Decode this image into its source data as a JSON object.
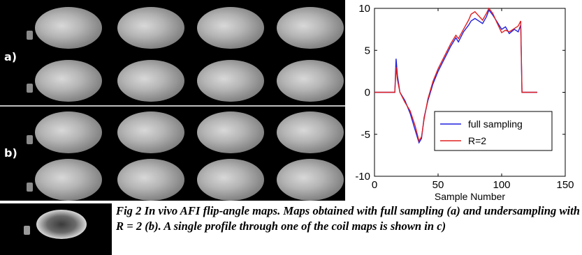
{
  "figure": {
    "row_labels": {
      "a": "a)",
      "b": "b)"
    },
    "caption": "Fig 2 In vivo AFI flip-angle maps.  Maps obtained with full sampling (a) and undersampling with R = 2 (b). A single profile through one of the coil maps is shown in c)"
  },
  "chart_data": {
    "type": "line",
    "xlabel": "Sample Number",
    "ylabel": "",
    "xlim": [
      0,
      150
    ],
    "ylim": [
      -10,
      10
    ],
    "xticks": [
      0,
      50,
      100,
      150
    ],
    "yticks": [
      -10,
      -5,
      0,
      5,
      10
    ],
    "grid": false,
    "legend_position": "lower-right",
    "series": [
      {
        "name": "full sampling",
        "color": "#1f1fe0",
        "x": [
          0,
          16,
          17,
          18,
          20,
          24,
          28,
          32,
          35,
          37,
          39,
          42,
          46,
          50,
          55,
          60,
          64,
          66,
          70,
          74,
          76,
          79,
          82,
          85,
          88,
          90,
          93,
          96,
          100,
          103,
          106,
          110,
          113,
          115,
          116,
          118,
          128
        ],
        "y": [
          0,
          0,
          4,
          2,
          0,
          -1,
          -2.5,
          -4.5,
          -6,
          -5.5,
          -3,
          -1,
          1,
          2.5,
          4,
          5.5,
          6.5,
          6,
          7.2,
          8,
          8.5,
          8.8,
          8.5,
          8.2,
          9,
          9.8,
          9.2,
          8.5,
          7.5,
          7.8,
          7,
          7.5,
          7.2,
          8,
          0,
          0,
          0
        ]
      },
      {
        "name": "R=2",
        "color": "#e02020",
        "x": [
          0,
          16,
          17,
          18,
          20,
          24,
          28,
          32,
          35,
          37,
          39,
          42,
          46,
          50,
          55,
          60,
          64,
          66,
          70,
          74,
          76,
          79,
          82,
          85,
          88,
          90,
          93,
          96,
          100,
          103,
          106,
          110,
          113,
          115,
          116,
          118,
          128
        ],
        "y": [
          0,
          0,
          3,
          1.5,
          0,
          -1.2,
          -2.2,
          -4,
          -5.8,
          -5.3,
          -3.2,
          -0.8,
          1.3,
          2.8,
          4.3,
          5.8,
          6.8,
          6.4,
          7.5,
          8.6,
          9.3,
          9.6,
          9.1,
          8.6,
          9.4,
          10,
          9.4,
          8.4,
          7.1,
          7.4,
          7.2,
          7.6,
          7.9,
          8.5,
          0,
          0,
          0
        ]
      }
    ]
  }
}
